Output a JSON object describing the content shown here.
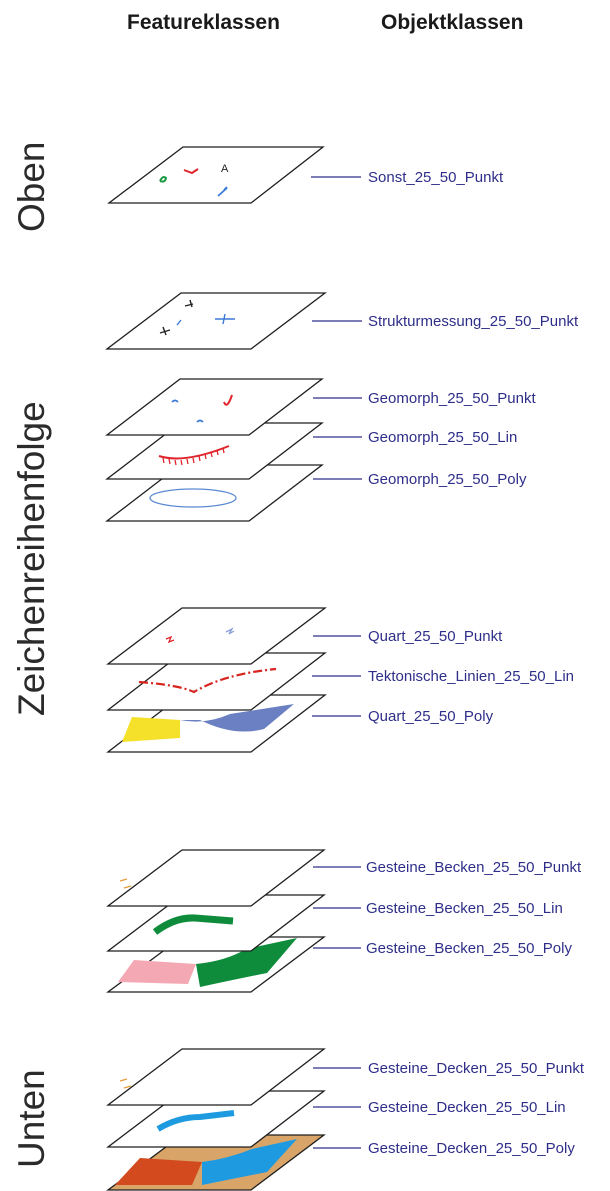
{
  "headers": {
    "feature_classes": "Featureklassen",
    "object_classes": "Objektklassen"
  },
  "side_labels": {
    "top": "Oben",
    "middle": "Zeichenreihenfolge",
    "bottom": "Unten"
  },
  "object_classes": [
    "Sonst_25_50_Punkt",
    "Strukturmessung_25_50_Punkt",
    "Geomorph_25_50_Punkt",
    "Geomorph_25_50_Lin",
    "Geomorph_25_50_Poly",
    "Quart_25_50_Punkt",
    "Tektonische_Linien_25_50_Lin",
    "Quart_25_50_Poly",
    "Gesteine_Becken_25_50_Punkt",
    "Gesteine_Becken_25_50_Lin",
    "Gesteine_Becken_25_50_Poly",
    "Gesteine_Decken_25_50_Punkt",
    "Gesteine_Decken_25_50_Lin",
    "Gesteine_Decken_25_50_Poly"
  ],
  "plane_glyph": "A",
  "colors": {
    "label_text": "#2e2e8a",
    "quart_yellow": "#f5e02a",
    "quart_blue": "#6b80c2",
    "becken_green": "#0e8c3c",
    "becken_pink": "#f4a8b4",
    "decken_blue": "#1e9be0",
    "decken_orange": "#d8a468",
    "decken_red": "#d24a1e",
    "tekton_red": "#d8241e",
    "geomorph_red": "#e0242c"
  }
}
